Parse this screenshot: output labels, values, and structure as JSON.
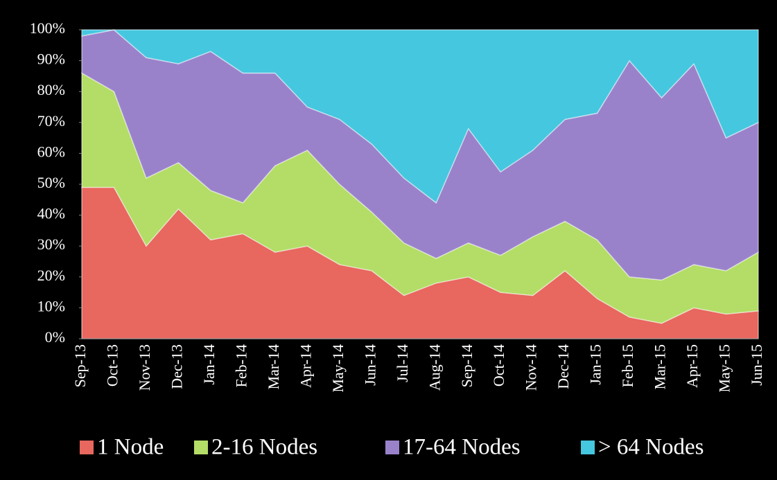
{
  "chart_data": {
    "type": "stacked_area_percent",
    "categories": [
      "Sep-13",
      "Oct-13",
      "Nov-13",
      "Dec-13",
      "Jan-14",
      "Feb-14",
      "Mar-14",
      "Apr-14",
      "May-14",
      "Jun-14",
      "Jul-14",
      "Aug-14",
      "Sep-14",
      "Oct-14",
      "Nov-14",
      "Dec-14",
      "Jan-15",
      "Feb-15",
      "Mar-15",
      "Apr-15",
      "May-15",
      "Jun-15"
    ],
    "series": [
      {
        "name": "1 Node",
        "color": "#e8675e",
        "values": [
          49,
          49,
          30,
          42,
          32,
          34,
          28,
          30,
          24,
          22,
          14,
          18,
          20,
          15,
          14,
          22,
          13,
          7,
          5,
          10,
          8,
          9
        ]
      },
      {
        "name": "2-16 Nodes",
        "color": "#b3dd66",
        "values": [
          37,
          31,
          22,
          15,
          16,
          10,
          28,
          31,
          26,
          19,
          17,
          8,
          11,
          12,
          19,
          16,
          19,
          13,
          14,
          14,
          14,
          19
        ]
      },
      {
        "name": "17-64 Nodes",
        "color": "#9a82cb",
        "values": [
          12,
          20,
          39,
          32,
          45,
          42,
          30,
          14,
          21,
          22,
          21,
          18,
          37,
          27,
          28,
          33,
          41,
          70,
          59,
          65,
          43,
          42
        ]
      },
      {
        "name": "> 64 Nodes",
        "color": "#45c7df",
        "values": [
          2,
          0,
          9,
          11,
          7,
          14,
          14,
          25,
          29,
          37,
          48,
          56,
          32,
          46,
          39,
          29,
          27,
          10,
          22,
          11,
          35,
          30
        ]
      }
    ],
    "ylim": [
      0,
      100
    ],
    "yticks": [
      {
        "value": 0,
        "label": "0%"
      },
      {
        "value": 10,
        "label": "10%"
      },
      {
        "value": 20,
        "label": "20%"
      },
      {
        "value": 30,
        "label": "30%"
      },
      {
        "value": 40,
        "label": "40%"
      },
      {
        "value": 50,
        "label": "50%"
      },
      {
        "value": 60,
        "label": "60%"
      },
      {
        "value": 70,
        "label": "70%"
      },
      {
        "value": 80,
        "label": "80%"
      },
      {
        "value": 90,
        "label": "90%"
      },
      {
        "value": 100,
        "label": "100%"
      }
    ],
    "legend": "bottom"
  }
}
